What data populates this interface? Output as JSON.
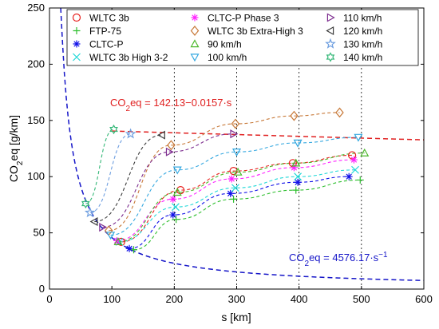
{
  "chart_data": {
    "type": "scatter",
    "xlabel": "s [km]",
    "ylabel_main": "CO",
    "ylabel_sub": "2",
    "ylabel_rest": "eq [g/km]",
    "xlim": [
      0,
      600
    ],
    "ylim": [
      0,
      250
    ],
    "xticks": [
      0,
      100,
      200,
      300,
      400,
      500,
      600
    ],
    "yticks": [
      0,
      50,
      100,
      150,
      200,
      250
    ],
    "legend_position": "top",
    "vertical_guides": [
      200,
      300,
      400,
      500
    ],
    "series": [
      {
        "name": "WLTC 3b",
        "marker": "circle",
        "color": "#e8221f",
        "points": [
          [
            115,
            42
          ],
          [
            210,
            88
          ],
          [
            295,
            105
          ],
          [
            390,
            112
          ],
          [
            485,
            119
          ]
        ]
      },
      {
        "name": "FTP-75",
        "marker": "plus",
        "color": "#2fbf2f",
        "points": [
          [
            135,
            35
          ],
          [
            203,
            62
          ],
          [
            295,
            80
          ],
          [
            395,
            88
          ],
          [
            498,
            97
          ]
        ]
      },
      {
        "name": "CLTC-P",
        "marker": "star",
        "color": "#1010e8",
        "points": [
          [
            128,
            36
          ],
          [
            198,
            66
          ],
          [
            290,
            85
          ],
          [
            398,
            95
          ],
          [
            480,
            100
          ]
        ]
      },
      {
        "name": "WLTC 3b High 3-2",
        "marker": "x",
        "color": "#20d8d8",
        "points": [
          [
            112,
            42
          ],
          [
            202,
            73
          ],
          [
            298,
            90
          ],
          [
            398,
            100
          ],
          [
            490,
            106
          ]
        ]
      },
      {
        "name": "CLTC-P Phase 3",
        "marker": "star",
        "color": "#ff22ff",
        "points": [
          [
            108,
            43
          ],
          [
            198,
            80
          ],
          [
            292,
            98
          ],
          [
            392,
            108
          ],
          [
            488,
            115
          ]
        ]
      },
      {
        "name": "WLTC 3b Extra-High 3",
        "marker": "diamond",
        "color": "#c87a3a",
        "points": [
          [
            95,
            52
          ],
          [
            195,
            128
          ],
          [
            298,
            147
          ],
          [
            392,
            154
          ],
          [
            465,
            157
          ]
        ]
      },
      {
        "name": "90 km/h",
        "marker": "triangle-up",
        "color": "#4cb82c",
        "points": [
          [
            110,
            42
          ],
          [
            205,
            86
          ],
          [
            302,
            104
          ],
          [
            395,
            112
          ],
          [
            505,
            121
          ]
        ]
      },
      {
        "name": "100 km/h",
        "marker": "triangle-down",
        "color": "#35a8e0",
        "points": [
          [
            98,
            48
          ],
          [
            205,
            106
          ],
          [
            300,
            122
          ],
          [
            398,
            130
          ],
          [
            495,
            135
          ]
        ]
      },
      {
        "name": "110 km/h",
        "marker": "triangle-right",
        "color": "#7d2d8f",
        "points": [
          [
            85,
            55
          ],
          [
            192,
            122
          ],
          [
            295,
            138
          ]
        ]
      },
      {
        "name": "120 km/h",
        "marker": "triangle-left",
        "color": "#3c3c3c",
        "points": [
          [
            72,
            60
          ],
          [
            180,
            137
          ]
        ]
      },
      {
        "name": "130 km/h",
        "marker": "pentagram",
        "color": "#6f9fe0",
        "points": [
          [
            65,
            68
          ],
          [
            130,
            138
          ]
        ]
      },
      {
        "name": "140 km/h",
        "marker": "hexagram",
        "color": "#35b878",
        "points": [
          [
            58,
            76
          ],
          [
            103,
            142
          ]
        ]
      }
    ],
    "fits": [
      {
        "label_main": "CO",
        "label_sub": "2",
        "label_rest": "eq = 142.13−0.0157·s",
        "color": "#e02020",
        "kind": "linear",
        "a": 142.13,
        "b": -0.0157,
        "x_from": 100,
        "x_to": 600
      },
      {
        "label_main": "CO",
        "label_sub": "2",
        "label_rest": "eq = 4576.17·s",
        "label_sup": "−1",
        "color": "#1515c8",
        "kind": "inverse",
        "k": 4576.17,
        "x_from": 18,
        "x_to": 600
      }
    ]
  }
}
